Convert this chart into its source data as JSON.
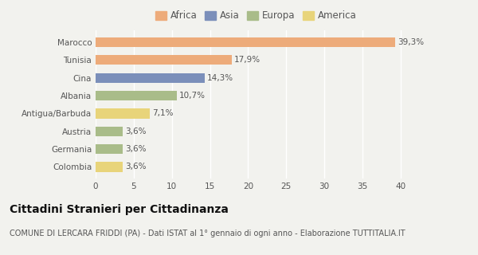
{
  "categories": [
    "Marocco",
    "Tunisia",
    "Cina",
    "Albania",
    "Antigua/Barbuda",
    "Austria",
    "Germania",
    "Colombia"
  ],
  "values": [
    39.3,
    17.9,
    14.3,
    10.7,
    7.1,
    3.6,
    3.6,
    3.6
  ],
  "labels": [
    "39,3%",
    "17,9%",
    "14,3%",
    "10,7%",
    "7,1%",
    "3,6%",
    "3,6%",
    "3,6%"
  ],
  "colors": [
    "#EDAB7A",
    "#EDAB7A",
    "#7B8FBA",
    "#A9BC89",
    "#E8D47A",
    "#A9BC89",
    "#A9BC89",
    "#E8D47A"
  ],
  "legend": [
    {
      "label": "Africa",
      "color": "#EDAB7A"
    },
    {
      "label": "Asia",
      "color": "#7B8FBA"
    },
    {
      "label": "Europa",
      "color": "#A9BC89"
    },
    {
      "label": "America",
      "color": "#E8D47A"
    }
  ],
  "xlim": [
    0,
    42
  ],
  "xticks": [
    0,
    5,
    10,
    15,
    20,
    25,
    30,
    35,
    40
  ],
  "title": "Cittadini Stranieri per Cittadinanza",
  "subtitle": "COMUNE DI LERCARA FRIDDI (PA) - Dati ISTAT al 1° gennaio di ogni anno - Elaborazione TUTTITALIA.IT",
  "background_color": "#f2f2ee",
  "bar_height": 0.55,
  "title_fontsize": 10,
  "subtitle_fontsize": 7,
  "label_fontsize": 7.5,
  "tick_fontsize": 7.5,
  "legend_fontsize": 8.5
}
